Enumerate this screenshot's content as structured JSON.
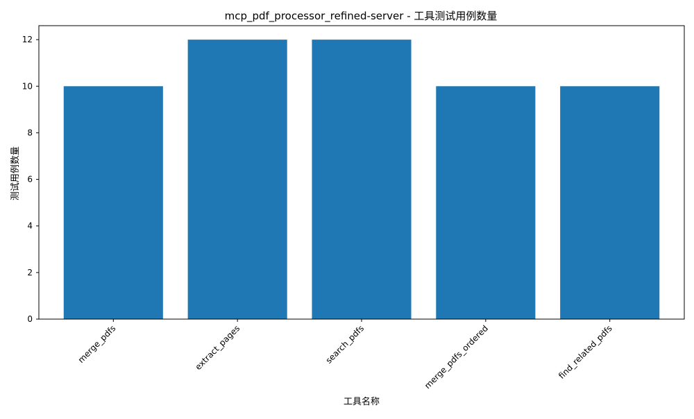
{
  "chart_data": {
    "type": "bar",
    "title": "mcp_pdf_processor_refined-server - 工具测试用例数量",
    "xlabel": "工具名称",
    "ylabel": "测试用例数量",
    "categories": [
      "merge_pdfs",
      "extract_pages",
      "search_pdfs",
      "merge_pdfs_ordered",
      "find_related_pdfs"
    ],
    "values": [
      10,
      12,
      12,
      10,
      10
    ],
    "ylim": [
      0,
      12.6
    ],
    "yticks": [
      0,
      2,
      4,
      6,
      8,
      10,
      12
    ],
    "bar_color": "#1f77b4",
    "grid": false,
    "legend": "none"
  }
}
